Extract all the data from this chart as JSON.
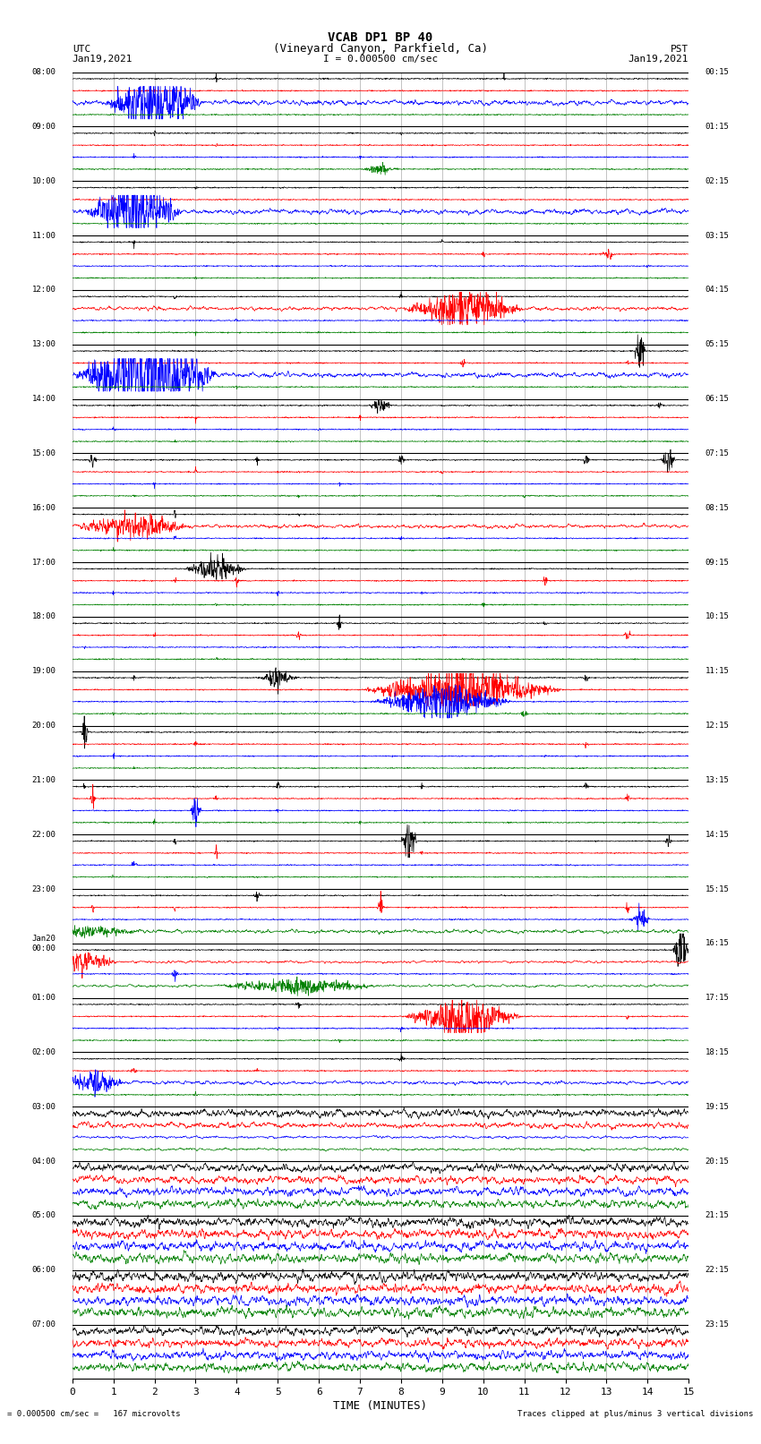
{
  "title_line1": "VCAB DP1 BP 40",
  "title_line2": "(Vineyard Canyon, Parkfield, Ca)",
  "scale_label": "I = 0.000500 cm/sec",
  "bottom_label_left": "= 0.000500 cm/sec =   167 microvolts",
  "bottom_label_right": "Traces clipped at plus/minus 3 vertical divisions",
  "xlabel": "TIME (MINUTES)",
  "fig_width": 8.5,
  "fig_height": 16.13,
  "bg_color": "#ffffff",
  "grid_color": "#888888",
  "colors": [
    "black",
    "red",
    "blue",
    "green"
  ],
  "utc_labels": [
    "08:00",
    "09:00",
    "10:00",
    "11:00",
    "12:00",
    "13:00",
    "14:00",
    "15:00",
    "16:00",
    "17:00",
    "18:00",
    "19:00",
    "20:00",
    "21:00",
    "22:00",
    "23:00",
    "Jan20\n00:00",
    "01:00",
    "02:00",
    "03:00",
    "04:00",
    "05:00",
    "06:00",
    "07:00"
  ],
  "pst_labels": [
    "00:15",
    "01:15",
    "02:15",
    "03:15",
    "04:15",
    "05:15",
    "06:15",
    "07:15",
    "08:15",
    "09:15",
    "10:15",
    "11:15",
    "12:15",
    "13:15",
    "14:15",
    "15:15",
    "16:15",
    "17:15",
    "18:15",
    "19:15",
    "20:15",
    "21:15",
    "22:15",
    "23:15"
  ],
  "num_hours": 24,
  "x_min": 0,
  "x_max": 15,
  "n_points": 1800
}
